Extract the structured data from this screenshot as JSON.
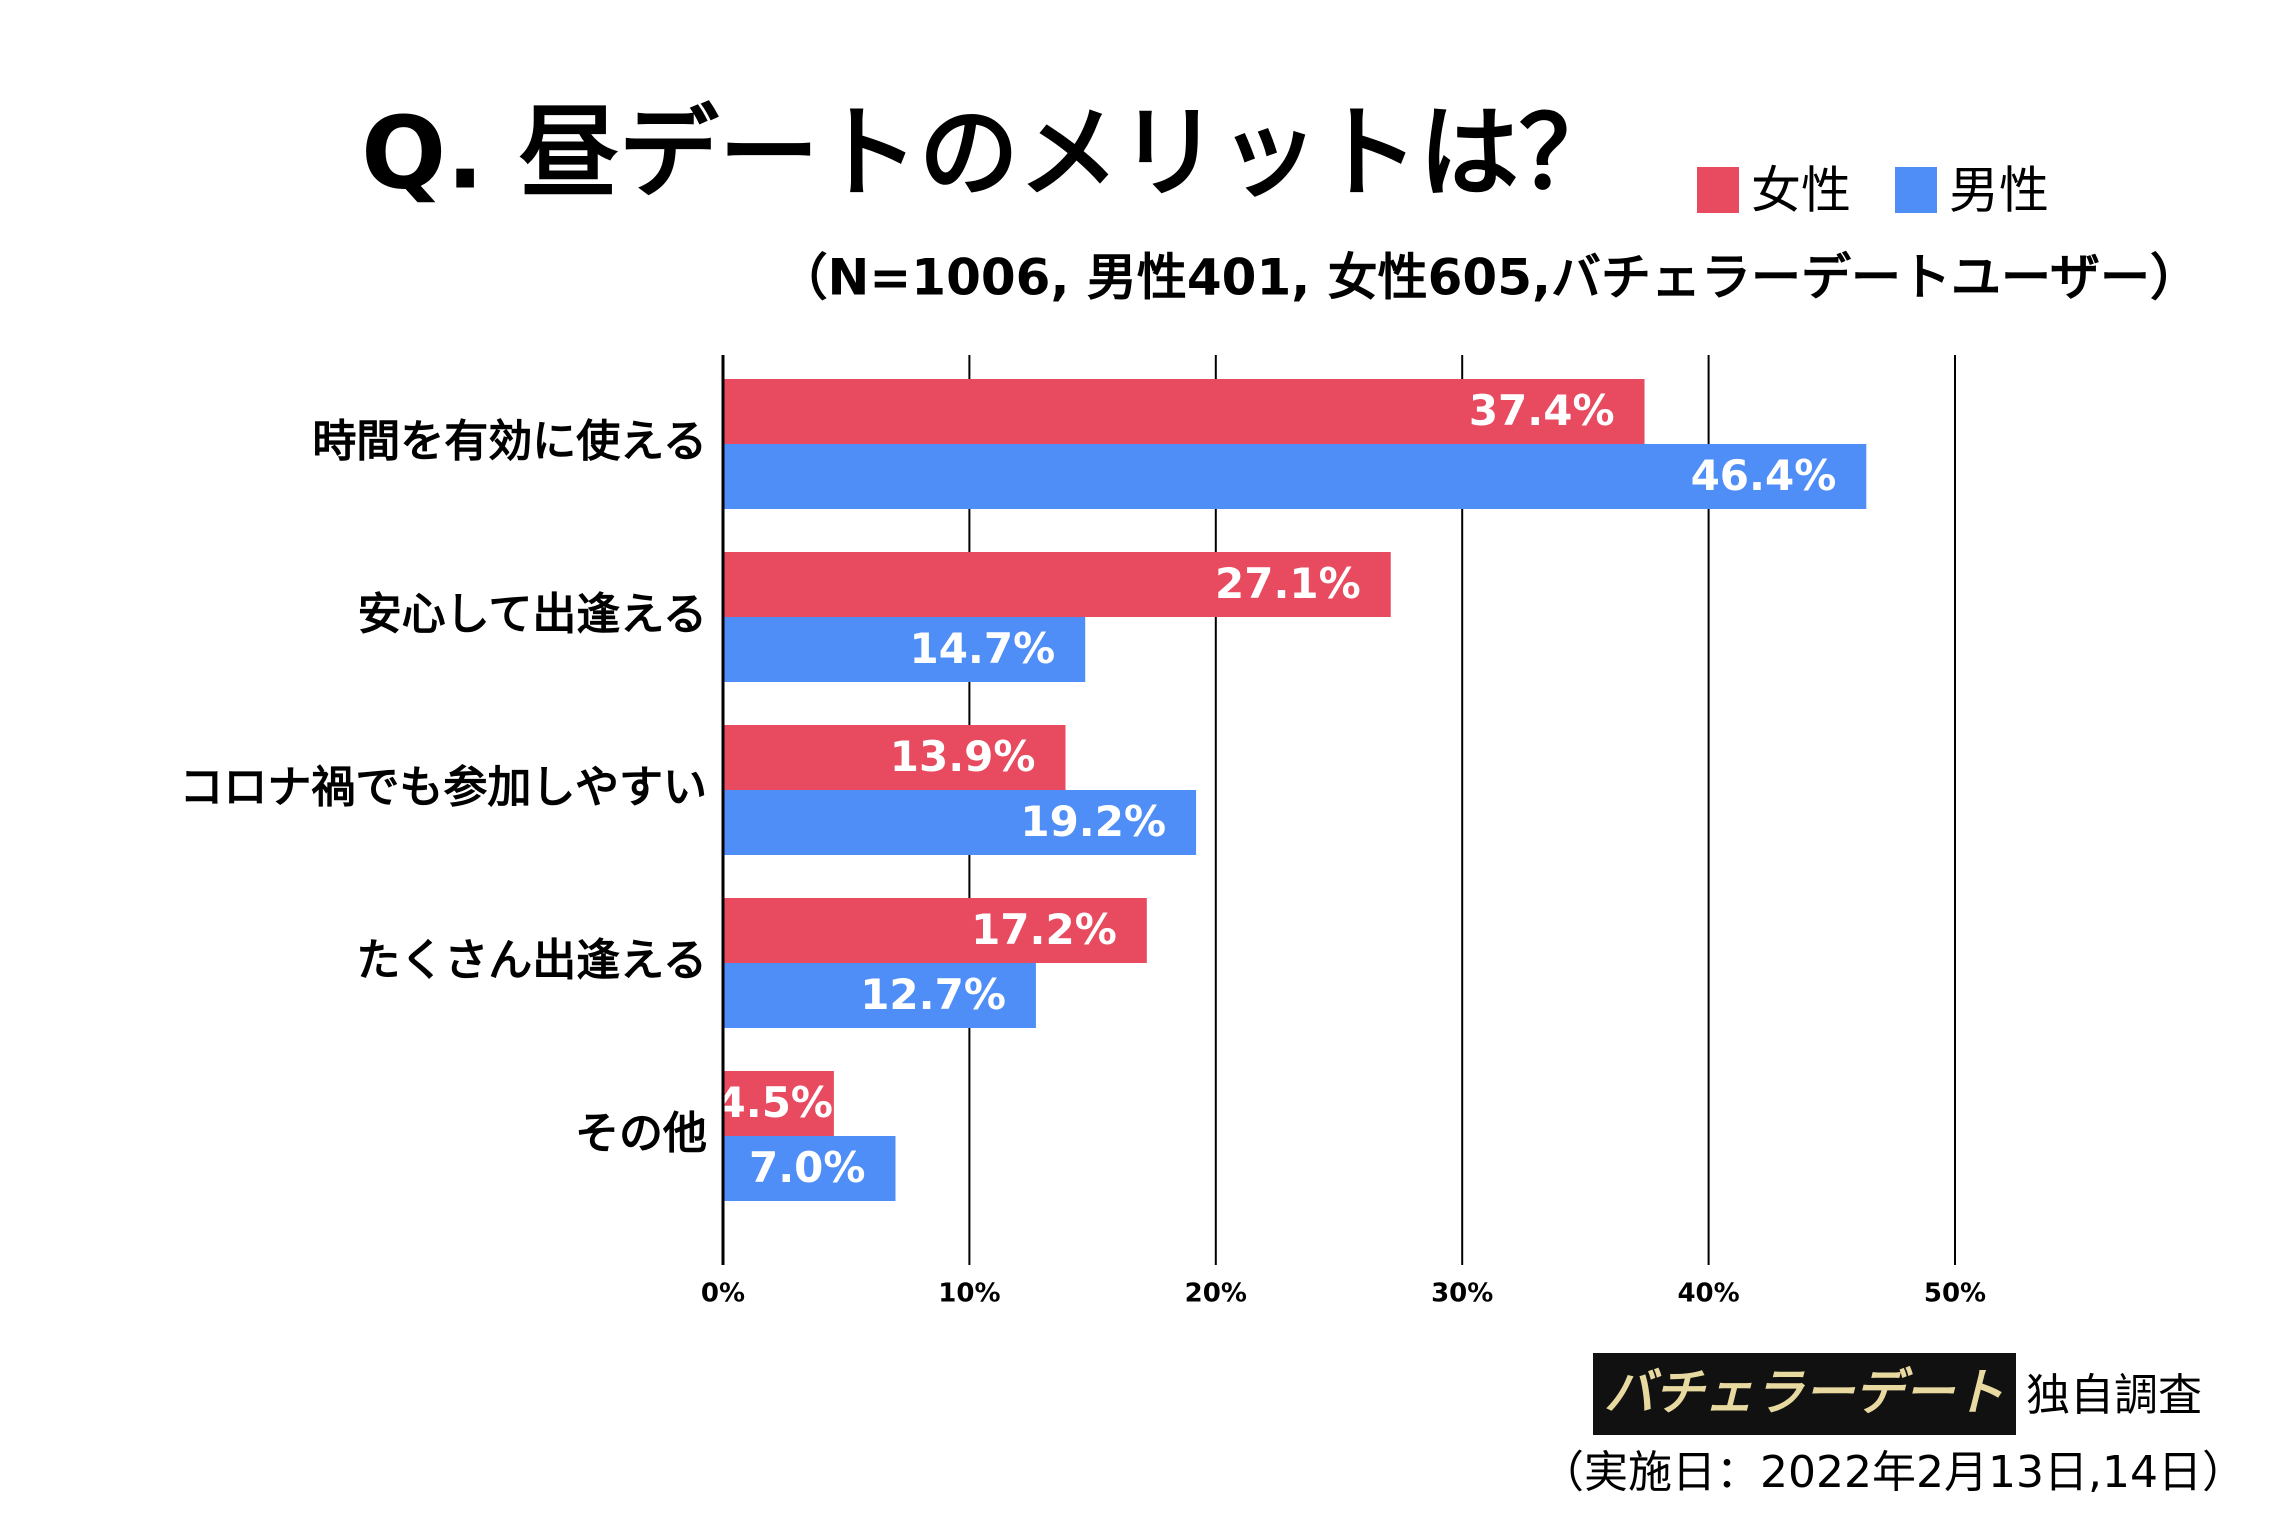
{
  "chart_data": {
    "type": "hbar",
    "title": "Q. 昼デートのメリットは？",
    "subtitle": "（N=1006, 男性401, 女性605,バチェラーデートユーザー）",
    "categories": [
      "時間を有効に使える",
      "安心して出逢える",
      "コロナ禍でも参加しやすい",
      "たくさん出逢える",
      "その他"
    ],
    "series": [
      {
        "name": "女性",
        "color": "#e84a5f",
        "values": [
          37.4,
          27.1,
          13.9,
          17.2,
          4.5
        ],
        "value_labels": [
          "37.4%",
          "27.1%",
          "13.9%",
          "17.2%",
          "4.5%"
        ]
      },
      {
        "name": "男性",
        "color": "#4f8ef7",
        "values": [
          46.4,
          14.7,
          19.2,
          12.7,
          7.0
        ],
        "value_labels": [
          "46.4%",
          "14.7%",
          "19.2%",
          "12.7%",
          "7.0%"
        ]
      }
    ],
    "xlim": [
      0,
      50
    ],
    "xticks": [
      {
        "value": 0,
        "label": "0%"
      },
      {
        "value": 10,
        "label": "10%"
      },
      {
        "value": 20,
        "label": "20%"
      },
      {
        "value": 30,
        "label": "30%"
      },
      {
        "value": 40,
        "label": "40%"
      },
      {
        "value": 50,
        "label": "50%"
      }
    ],
    "grid": true,
    "logo": "バチェラーデート",
    "source": "独自調査",
    "date": "（実施日：2022年2月13日,14日）"
  }
}
